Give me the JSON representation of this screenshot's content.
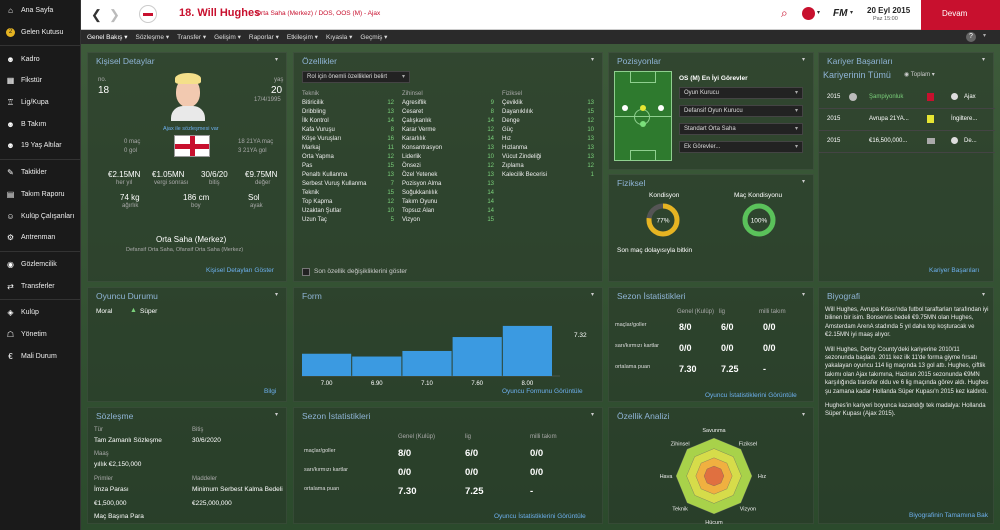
{
  "sidebar": {
    "items": [
      {
        "label": "Ana Sayfa",
        "icon": "home-icon"
      },
      {
        "label": "Gelen Kutusu",
        "icon": "inbox-icon"
      },
      {
        "label": "Kadro",
        "icon": "squad-icon"
      },
      {
        "label": "Fikstür",
        "icon": "calendar-icon"
      },
      {
        "label": "Lig/Kupa",
        "icon": "trophy-icon"
      },
      {
        "label": "B Takım",
        "icon": "b-team-icon"
      },
      {
        "label": "19 Yaş Altılar",
        "icon": "u19-icon"
      },
      {
        "label": "Taktikler",
        "icon": "tactics-icon"
      },
      {
        "label": "Takım Raporu",
        "icon": "report-icon"
      },
      {
        "label": "Kulüp Çalışanları",
        "icon": "staff-icon"
      },
      {
        "label": "Antrenman",
        "icon": "training-icon"
      },
      {
        "label": "Gözlemcilik",
        "icon": "scouting-icon"
      },
      {
        "label": "Transferler",
        "icon": "transfers-icon"
      },
      {
        "label": "Kulüp",
        "icon": "club-icon"
      },
      {
        "label": "Yönetim",
        "icon": "board-icon"
      },
      {
        "label": "Mali Durum",
        "icon": "finance-icon"
      }
    ]
  },
  "header": {
    "player_title": "18. Will Hughes",
    "player_sub": "Orta Saha (Merkez) / DOS, OOS (M) - Ajax",
    "date": "20 Eyl 2015",
    "time": "Paz 15:00",
    "continue": "Devam",
    "fm_logo": "FM"
  },
  "subnav": [
    "Genel Bakış ▾",
    "Sözleşme ▾",
    "Transfer ▾",
    "Gelişim ▾",
    "Raporlar ▾",
    "Etkileşim ▾",
    "Kıyasla ▾",
    "Geçmiş ▾"
  ],
  "personal": {
    "title": "Kişisel Detaylar",
    "no_label": "no.",
    "no": "18",
    "age_label": "yaş",
    "age": "20",
    "dob": "17/4/1995",
    "loan_note": "Ajax ile sözleşmesi var",
    "caps": "0 maç",
    "goals": "0 gol",
    "u21_caps": "18 21YA maç",
    "u21_goals": "3 21YA gol",
    "wage": "€2.15MN",
    "wage_label": "her yıl",
    "after_tax": "€1.05MN",
    "after_tax_label": "vergi sonrası",
    "expires": "30/6/20",
    "expires_label": "bitiş",
    "value": "€9.75MN",
    "value_label": "değer",
    "weight": "74 kg",
    "weight_label": "ağırlık",
    "height": "186 cm",
    "height_label": "boy",
    "foot": "Sol",
    "foot_label": "ayak",
    "position": "Orta Saha (Merkez)",
    "roles": "Defansif Orta Saha, Ofansif Orta Saha (Merkez)",
    "link": "Kişisel Detayları Göster"
  },
  "attributes": {
    "title": "Özellikler",
    "role_select": "Rol için önemli özellikleri belirt",
    "col_heads": [
      "Teknik",
      "Zihinsel",
      "Fiziksel"
    ],
    "technical": [
      [
        "Bitiricilik",
        "12"
      ],
      [
        "Dribbling",
        "13"
      ],
      [
        "İlk Kontrol",
        "14"
      ],
      [
        "Kafa Vuruşu",
        "8"
      ],
      [
        "Köşe Vuruşları",
        "16"
      ],
      [
        "Markaj",
        "11"
      ],
      [
        "Orta Yapma",
        "12"
      ],
      [
        "Pas",
        "15"
      ],
      [
        "Penaltı Kullanma",
        "13"
      ],
      [
        "Serbest Vuruş Kullanma",
        "7"
      ],
      [
        "Teknik",
        "15"
      ],
      [
        "Top Kapma",
        "12"
      ],
      [
        "Uzaktan Şutlar",
        "10"
      ],
      [
        "Uzun Taç",
        "5"
      ]
    ],
    "mental": [
      [
        "Agresiflik",
        "9"
      ],
      [
        "Cesaret",
        "8"
      ],
      [
        "Çalışkanlık",
        "14"
      ],
      [
        "Karar Verme",
        "12"
      ],
      [
        "Kararlılık",
        "14"
      ],
      [
        "Konsantrasyon",
        "13"
      ],
      [
        "Liderlik",
        "10"
      ],
      [
        "Önsezi",
        "12"
      ],
      [
        "Özel Yetenek",
        "13"
      ],
      [
        "Pozisyon Alma",
        "13"
      ],
      [
        "Soğukkanlılık",
        "14"
      ],
      [
        "Takım Oyunu",
        "14"
      ],
      [
        "Topsuz Alan",
        "14"
      ],
      [
        "Vizyon",
        "15"
      ]
    ],
    "physical": [
      [
        "Çeviklik",
        "13"
      ],
      [
        "Dayanıklılık",
        "15"
      ],
      [
        "Denge",
        "12"
      ],
      [
        "Güç",
        "10"
      ],
      [
        "Hız",
        "13"
      ],
      [
        "Hızlanma",
        "13"
      ],
      [
        "Vücut Zindeliği",
        "13"
      ],
      [
        "Zıplama",
        "12"
      ],
      [
        "Kalecilik Becerisi",
        "1"
      ]
    ],
    "checkbox_label": "Son özellik değişikliklerini göster"
  },
  "positions": {
    "title": "Pozisyonlar",
    "best_roles": "OS (M) En İyi Görevler",
    "roles": [
      "Oyun Kurucu",
      "Defansif Oyun Kurucu",
      "Standart Orta Saha",
      "Ek Görevler..."
    ]
  },
  "career": {
    "title": "Kariyer Başarıları",
    "sub": "Kariyerinin Tümü",
    "toggle": "Toplam",
    "rows": [
      {
        "year": "2015",
        "a": "Şampiyonluk",
        "b": "Ajax",
        "green": true
      },
      {
        "year": "2015",
        "a": "Avrupa 21YA...",
        "b": "İngiltere..."
      },
      {
        "year": "2015",
        "a": "€16,500,000...",
        "b": "De..."
      }
    ],
    "link": "Kariyer Başarıları"
  },
  "physical": {
    "title": "Fiziksel",
    "cond_label": "Kondisyon",
    "cond_value": "77%",
    "match_label": "Maç Kondisyonu",
    "match_value": "100%",
    "note": "Son maç dolayısıyla bitkin",
    "cond_pct": 77,
    "match_pct": 100
  },
  "status": {
    "title": "Oyuncu Durumu",
    "moral_label": "Moral",
    "moral_value": "Süper",
    "link": "Bilgi"
  },
  "form": {
    "title": "Form",
    "link": "Oyuncu Formunu Görüntüle"
  },
  "season_top": {
    "title": "Sezon İstatistikleri",
    "cols": [
      "Genel (Kulüp)",
      "lig",
      "milli takım"
    ],
    "rows": [
      [
        "maçlar/goller",
        "8/0",
        "6/0",
        "0/0"
      ],
      [
        "sarı/kırmızı kartlar",
        "0/0",
        "0/0",
        "0/0"
      ],
      [
        "ortalama puan",
        "7.30",
        "7.25",
        "-"
      ]
    ],
    "link": "Oyuncu İstatistiklerini Görüntüle"
  },
  "bio": {
    "title": "Biyografi",
    "p1": "Will Hughes, Avrupa Kıtası'nda futbol taraftarları tarafından iyi bilinen bir isim. Bonservis bedeli €9.75MN olan Hughes, Amsterdam ArenA stadında 5 yıl daha top koşturacak ve €2.15MN iyi maaş alıyor.",
    "p2": "Will Hughes, Derby County'deki kariyerine 2010/11 sezonunda başladı. 2011 kez ilk 11'de forma giyme fırsatı yakalayan oyuncu 114 lig maçında 13 gol attı. Hughes, çiftlik takımı olan Ajax takımına, Haziran 2015 sezonunda €9MN karşılığında transfer oldu ve 6 lig maçında görev aldı. Hughes şu zamana kadar Hollanda Süper Kupası'n 2015 kez kaldırdı.",
    "p3": "Hughes'in kariyeri boyunca kazandığı tek madalya: Hollanda Süper Kupası (Ajax 2015).",
    "link": "Biyografinin Tamamına Bak"
  },
  "contract": {
    "title": "Sözleşme",
    "type_label": "Tür",
    "type": "Tam Zamanlı Sözleşme",
    "end_label": "Bitiş",
    "end": "30/6/2020",
    "wage_label": "Maaş",
    "wage": "yıllık €2,150,000",
    "bonus_label": "Primler",
    "bonus1": "İmza Parası",
    "bonus1_val": "€1,500,000",
    "bonus2": "Maç Başına Para",
    "clause_label": "Maddeler",
    "clause": "Minimum Serbest Kalma Bedeli",
    "clause_val": "€225,000,000"
  },
  "season_bottom": {
    "title": "Sezon İstatistikleri",
    "cols": [
      "Genel (Kulüp)",
      "lig",
      "milli takım"
    ],
    "rows": [
      [
        "maçlar/goller",
        "8/0",
        "6/0",
        "0/0"
      ],
      [
        "sarı/kırmızı kartlar",
        "0/0",
        "0/0",
        "0/0"
      ],
      [
        "ortalama puan",
        "7.30",
        "7.25",
        "-"
      ]
    ],
    "link": "Oyuncu İstatistiklerini Görüntüle"
  },
  "analysis": {
    "title": "Özellik Analizi",
    "axes": [
      "Savunma",
      "Fiziksel",
      "Hız",
      "Vizyon",
      "Hücum",
      "Teknik",
      "Hava",
      "Zihinsel"
    ]
  },
  "chart_data": {
    "type": "bar",
    "categories": [
      "7.00",
      "6.90",
      "7.10",
      "7.60",
      "8.00"
    ],
    "values": [
      7.0,
      6.9,
      7.1,
      7.6,
      8.0
    ],
    "annotation": "7.32",
    "title": "Form",
    "xlabel": "",
    "ylabel": "",
    "ylim": [
      0,
      8.5
    ]
  },
  "colors": {
    "accent": "#3b9ae1",
    "green": "#7ad07a",
    "gold": "#e6b422",
    "link": "#6db0ef"
  }
}
